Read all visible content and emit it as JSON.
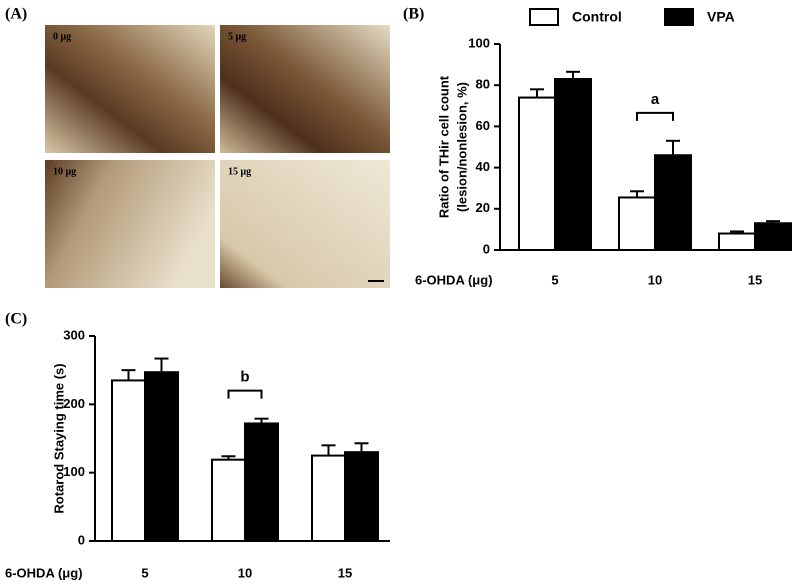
{
  "panel_a": {
    "label": "(A)",
    "images": [
      "0 μg",
      "5 μg",
      "10 μg",
      "15 μg"
    ]
  },
  "chart_data": [
    {
      "type": "bar",
      "panel_label": "(B)",
      "ylabel": [
        "Ratio of THir cell count",
        "(lesion/nonlesion, %)"
      ],
      "xlabel": "6-OHDA (μg)",
      "categories": [
        "5",
        "10",
        "15"
      ],
      "series": [
        {
          "name": "Control",
          "color": "#ffffff",
          "values": [
            74,
            25.5,
            8
          ],
          "errors": [
            4,
            3,
            1
          ]
        },
        {
          "name": "VPA",
          "color": "#000000",
          "values": [
            83,
            46,
            13
          ],
          "errors": [
            3.5,
            7,
            1
          ]
        }
      ],
      "ylim": [
        0,
        100
      ],
      "yticks": [
        0,
        20,
        40,
        60,
        80,
        100
      ],
      "legend": "top",
      "annotations": [
        {
          "text": "a",
          "x": "10"
        }
      ]
    },
    {
      "type": "bar",
      "panel_label": "(C)",
      "ylabel": [
        "Rotarod Staying time (s)"
      ],
      "xlabel": "6-OHDA (μg)",
      "categories": [
        "5",
        "10",
        "15"
      ],
      "series": [
        {
          "color": "#ffffff",
          "values": [
            235,
            119,
            125
          ],
          "errors": [
            15,
            5,
            15
          ]
        },
        {
          "color": "#000000",
          "values": [
            247,
            172,
            130
          ],
          "errors": [
            20,
            7,
            13
          ]
        }
      ],
      "ylim": [
        0,
        300
      ],
      "yticks": [
        0,
        100,
        200,
        300
      ],
      "legend": "none",
      "annotations": [
        {
          "text": "b",
          "x": "10"
        }
      ]
    }
  ]
}
